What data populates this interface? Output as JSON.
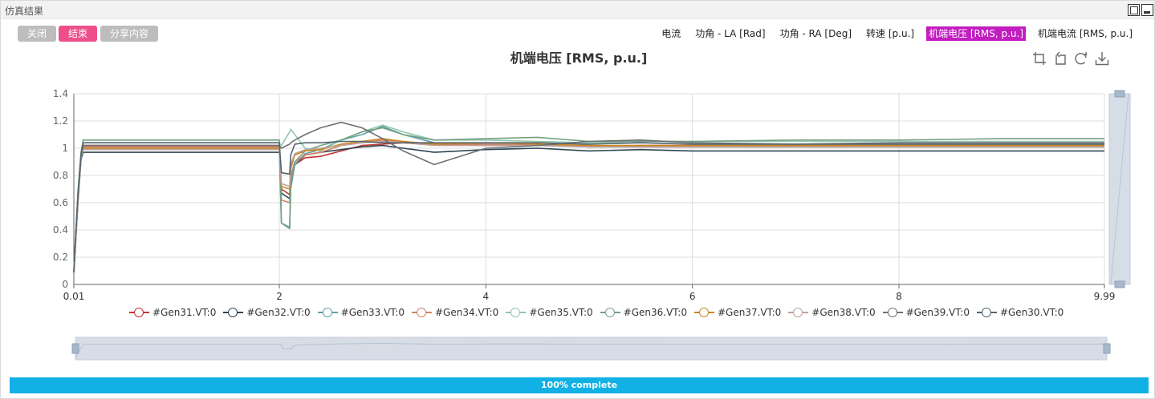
{
  "window": {
    "title": "仿真结果"
  },
  "buttons": {
    "close": "关闭",
    "finish": "结束",
    "share": "分享内容"
  },
  "tabs": [
    {
      "label": "电流",
      "active": false
    },
    {
      "label": "功角 - LA [Rad]",
      "active": false
    },
    {
      "label": "功角 - RA [Deg]",
      "active": false
    },
    {
      "label": "转速 [p.u.]",
      "active": false
    },
    {
      "label": "机端电压 [RMS, p.u.]",
      "active": true
    },
    {
      "label": "机端电流 [RMS, p.u.]",
      "active": false
    }
  ],
  "toolbox": [
    "zoom-icon",
    "zoom-reset-icon",
    "restore-icon",
    "download-icon"
  ],
  "progress": {
    "value": 100,
    "label": "100% complete"
  },
  "colors": {
    "accent": "#c21dc0",
    "finish": "#ee4f8b",
    "progress": "#11b1e6"
  },
  "chart_data": {
    "type": "line",
    "title": "机端电压  [RMS, p.u.]",
    "xlabel": "",
    "ylabel": "",
    "xlim": [
      0.01,
      9.99
    ],
    "ylim": [
      0,
      1.4
    ],
    "xticks": [
      "0.01",
      "2",
      "4",
      "6",
      "8",
      "9.99"
    ],
    "xtick_values": [
      0.01,
      2,
      4,
      6,
      8,
      9.99
    ],
    "yticks": [
      "0",
      "0.2",
      "0.4",
      "0.6",
      "0.8",
      "1",
      "1.2",
      "1.4"
    ],
    "ytick_values": [
      0,
      0.2,
      0.4,
      0.6,
      0.8,
      1.0,
      1.2,
      1.4
    ],
    "grid": true,
    "legend_position": "bottom",
    "x": [
      0.01,
      0.05,
      0.08,
      0.1,
      2.0,
      2.02,
      2.1,
      2.11,
      2.15,
      2.25,
      2.4,
      2.6,
      2.8,
      3.0,
      3.2,
      3.5,
      4.0,
      4.5,
      5.0,
      5.5,
      6.0,
      7.0,
      8.0,
      9.0,
      9.99
    ],
    "series": [
      {
        "name": "#Gen31.VT:0",
        "color": "#c23531",
        "values": [
          0.09,
          0.65,
          0.95,
          1.02,
          1.02,
          0.7,
          0.66,
          0.8,
          0.88,
          0.93,
          0.94,
          0.98,
          1.02,
          1.03,
          1.04,
          1.03,
          1.02,
          1.03,
          1.01,
          1.02,
          1.02,
          1.02,
          1.02,
          1.02,
          1.02
        ]
      },
      {
        "name": "#Gen32.VT:0",
        "color": "#2f4554",
        "values": [
          0.09,
          0.6,
          0.92,
          0.97,
          0.97,
          0.67,
          0.63,
          0.78,
          0.88,
          0.95,
          0.97,
          0.99,
          1.01,
          1.02,
          1.0,
          0.97,
          0.99,
          1.0,
          0.98,
          0.99,
          0.98,
          0.98,
          0.98,
          0.98,
          0.98
        ]
      },
      {
        "name": "#Gen33.VT:0",
        "color": "#61a0a8",
        "values": [
          0.09,
          0.62,
          0.93,
          1.0,
          1.0,
          0.45,
          0.42,
          0.7,
          0.88,
          0.96,
          0.99,
          1.06,
          1.1,
          1.16,
          1.1,
          1.04,
          1.03,
          1.02,
          1.01,
          1.01,
          1.01,
          1.01,
          1.01,
          1.01,
          1.01
        ]
      },
      {
        "name": "#Gen34.VT:0",
        "color": "#d48265",
        "values": [
          0.09,
          0.62,
          0.94,
          1.01,
          1.01,
          0.62,
          0.6,
          0.8,
          0.9,
          0.95,
          0.97,
          1.02,
          1.04,
          1.06,
          1.05,
          1.03,
          1.03,
          1.02,
          1.02,
          1.01,
          1.01,
          1.01,
          1.01,
          1.01,
          1.01
        ]
      },
      {
        "name": "#Gen35.VT:0",
        "color": "#91c7ae",
        "values": [
          0.09,
          0.66,
          0.96,
          1.04,
          1.04,
          1.02,
          1.12,
          1.14,
          1.1,
          1.0,
          0.98,
          1.06,
          1.12,
          1.17,
          1.12,
          1.06,
          1.06,
          1.05,
          1.04,
          1.05,
          1.05,
          1.05,
          1.05,
          1.05,
          1.05
        ]
      },
      {
        "name": "#Gen36.VT:0",
        "color": "#749f83",
        "values": [
          0.09,
          0.68,
          0.97,
          1.06,
          1.06,
          0.45,
          0.41,
          0.75,
          0.9,
          0.98,
          1.02,
          1.06,
          1.12,
          1.15,
          1.1,
          1.06,
          1.07,
          1.08,
          1.05,
          1.05,
          1.05,
          1.06,
          1.06,
          1.07,
          1.07
        ]
      },
      {
        "name": "#Gen37.VT:0",
        "color": "#ca8622",
        "values": [
          0.09,
          0.63,
          0.94,
          1.0,
          1.0,
          0.72,
          0.7,
          0.85,
          0.95,
          0.98,
          0.99,
          1.03,
          1.05,
          1.07,
          1.05,
          1.03,
          1.04,
          1.03,
          1.02,
          1.02,
          1.02,
          1.02,
          1.02,
          1.02,
          1.02
        ]
      },
      {
        "name": "#Gen38.VT:0",
        "color": "#bda29a",
        "values": [
          0.09,
          0.63,
          0.94,
          0.99,
          0.99,
          0.74,
          0.72,
          0.88,
          0.96,
          0.99,
          1.0,
          1.02,
          1.04,
          1.05,
          1.04,
          1.02,
          1.02,
          1.02,
          1.01,
          1.01,
          1.01,
          1.01,
          1.01,
          1.01,
          1.01
        ]
      },
      {
        "name": "#Gen39.VT:0",
        "color": "#6e7074",
        "values": [
          0.09,
          0.65,
          0.95,
          1.02,
          1.02,
          1.0,
          1.03,
          1.04,
          1.06,
          1.1,
          1.15,
          1.19,
          1.15,
          1.07,
          0.98,
          0.88,
          1.0,
          1.02,
          1.05,
          1.06,
          1.04,
          1.03,
          1.04,
          1.04,
          1.04
        ]
      },
      {
        "name": "#Gen30.VT:0",
        "color": "#546570",
        "values": [
          0.09,
          0.66,
          0.96,
          1.04,
          1.04,
          0.82,
          0.81,
          0.95,
          1.03,
          1.04,
          1.04,
          1.05,
          1.05,
          1.04,
          1.04,
          1.04,
          1.04,
          1.04,
          1.03,
          1.04,
          1.03,
          1.03,
          1.03,
          1.03,
          1.03
        ]
      }
    ]
  }
}
